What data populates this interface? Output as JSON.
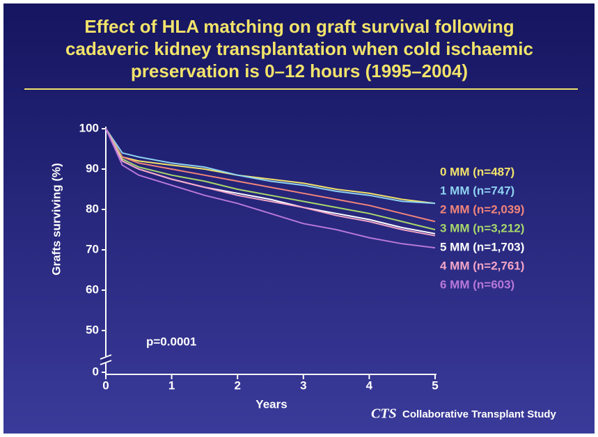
{
  "chart_data": {
    "type": "line",
    "title": [
      "Effect of HLA matching on graft survival following",
      "cadaveric kidney transplantation when cold ischaemic",
      "preservation is 0–12 hours (1995–2004)"
    ],
    "x_label": "Years",
    "y_label": "Grafts surviving (%)",
    "annotation": "p=0.0001",
    "footer_logo": "CTS",
    "footer_text": "Collaborative Transplant Study",
    "x": [
      0,
      0.25,
      0.5,
      1,
      1.5,
      2,
      2.5,
      3,
      3.5,
      4,
      4.5,
      5
    ],
    "xlim": [
      0,
      5
    ],
    "xticks": [
      0,
      1,
      2,
      3,
      4,
      5
    ],
    "ylim": [
      0,
      100
    ],
    "yticks": [
      0,
      50,
      60,
      70,
      80,
      90,
      100
    ],
    "axis_break": [
      0,
      50
    ],
    "series": [
      {
        "name": "0 MM (n=487)",
        "color": "#f2e36a",
        "values": [
          100,
          93,
          92,
          91,
          90,
          88.5,
          87.5,
          86.5,
          85,
          84,
          82.5,
          81.5
        ]
      },
      {
        "name": "1 MM (n=747)",
        "color": "#8fd3f2",
        "values": [
          100,
          94,
          93,
          91.5,
          90.5,
          88.5,
          87,
          86,
          84.5,
          83.5,
          82,
          81.5
        ]
      },
      {
        "name": "2 MM (n=2,039)",
        "color": "#f2857a",
        "values": [
          100,
          93,
          91.5,
          90,
          88.5,
          87,
          85.5,
          84,
          82.5,
          81,
          79,
          77
        ]
      },
      {
        "name": "3 MM (n=3,212)",
        "color": "#a8d86a",
        "values": [
          100,
          92.5,
          90.5,
          88.5,
          87,
          85,
          83.5,
          82,
          80.5,
          79,
          77,
          75
        ]
      },
      {
        "name": "5 MM (n=1,703)",
        "color": "#ffffff",
        "values": [
          100,
          92,
          90,
          87.5,
          85.5,
          84,
          82.5,
          80.5,
          79,
          77.5,
          75.5,
          74
        ]
      },
      {
        "name": "4 MM (n=2,761)",
        "color": "#f4a6c8",
        "values": [
          100,
          92,
          90,
          87.5,
          85.5,
          83.5,
          82,
          80.5,
          78.5,
          77,
          75,
          73.5
        ]
      },
      {
        "name": "6 MM (n=603)",
        "color": "#b878d8",
        "values": [
          100,
          91,
          88.5,
          86,
          83.5,
          81.5,
          79,
          76.5,
          75,
          73,
          71.5,
          70.5
        ]
      }
    ]
  }
}
